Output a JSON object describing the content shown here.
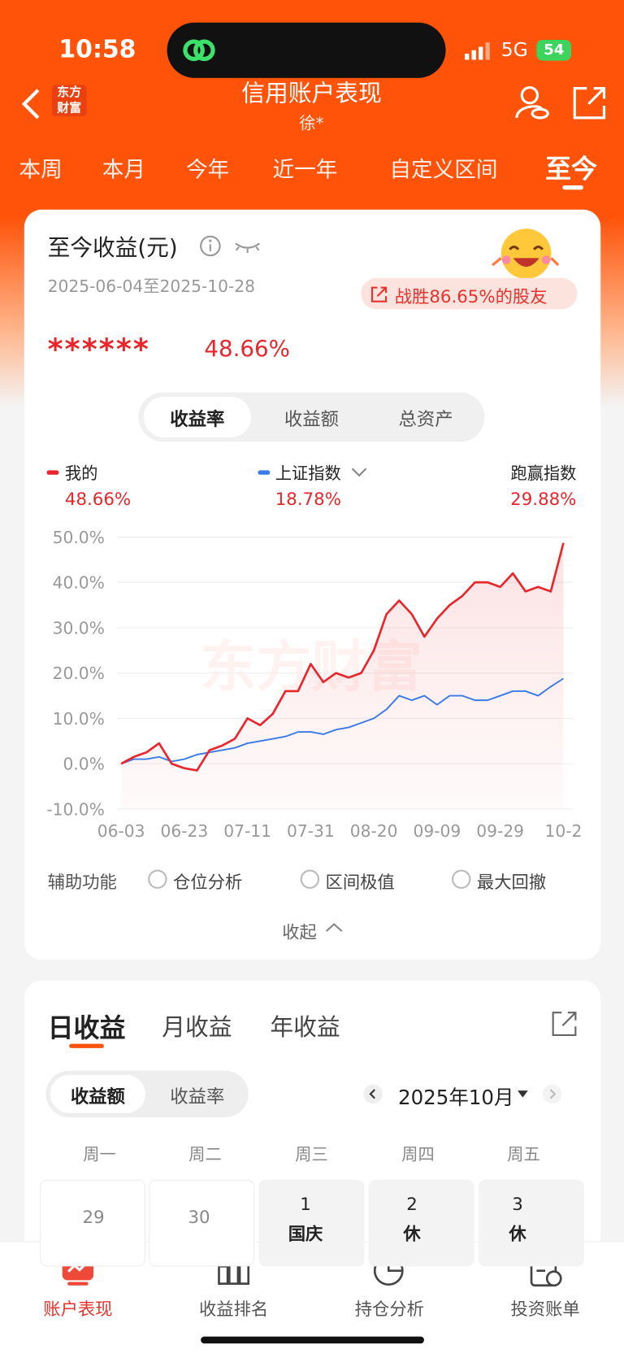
{
  "status_bar": {
    "time": "10:58",
    "network": "5G",
    "battery": "54"
  },
  "header": {
    "logo_lines": [
      "东方",
      "财富"
    ],
    "title": "信用账户表现",
    "subtitle": "徐*"
  },
  "period_tabs": [
    "本周",
    "本月",
    "今年",
    "近一年",
    "自定义区间",
    "至今"
  ],
  "summary": {
    "title": "至今收益(元)",
    "date_range": "2025-06-04至2025-10-28",
    "badge": "战胜86.65%的股友",
    "amount": "******",
    "rate": "48.66%"
  },
  "metric_tabs": [
    "收益率",
    "收益额",
    "总资产"
  ],
  "legend": [
    {
      "name": "我的",
      "value": "48.66%"
    },
    {
      "name": "上证指数",
      "value": "18.78%"
    },
    {
      "name": "跑赢指数",
      "value": "29.88%"
    }
  ],
  "chart": {
    "type": "line",
    "watermark": "东方财富",
    "categories": [
      "06-03",
      null,
      null,
      null,
      null,
      "06-23",
      null,
      null,
      null,
      null,
      "07-11",
      null,
      null,
      null,
      null,
      "07-31",
      null,
      null,
      null,
      null,
      "08-20",
      null,
      null,
      null,
      null,
      "09-09",
      null,
      null,
      null,
      null,
      "09-29",
      null,
      null,
      null,
      null,
      "10-2"
    ],
    "series": [
      {
        "color": "#e8262b",
        "values": [
          0,
          1.5,
          2.5,
          4.5,
          0,
          -1,
          -1.5,
          3,
          4,
          5.5,
          10,
          8.5,
          11,
          16,
          16,
          22,
          18,
          20,
          19,
          20,
          25,
          33,
          36,
          33,
          28,
          32,
          35,
          37,
          40,
          40,
          39,
          42,
          38,
          39,
          38,
          48.7
        ]
      },
      {
        "color": "#3b7be8",
        "values": [
          0,
          1,
          1,
          1.5,
          0.5,
          1,
          2,
          2.5,
          3,
          3.5,
          4.5,
          5,
          5.5,
          6,
          7,
          7,
          6.5,
          7.5,
          8,
          9,
          10,
          12,
          15,
          14,
          15,
          13,
          15,
          15,
          14,
          14,
          15,
          16,
          16,
          15,
          17,
          18.8
        ]
      }
    ],
    "ylim": [
      -10,
      50
    ],
    "yticks": [
      {
        "value": 50,
        "label": "50.0%"
      },
      {
        "value": 40,
        "label": "40.0%"
      },
      {
        "value": 30,
        "label": "30.0%"
      },
      {
        "value": 20,
        "label": "20.0%"
      },
      {
        "value": 10,
        "label": "10.0%"
      },
      {
        "value": 0,
        "label": "0.0%"
      },
      {
        "value": -10,
        "label": "-10.0%"
      }
    ],
    "grid": true
  },
  "tools": {
    "label": "辅助功能",
    "options": [
      "仓位分析",
      "区间极值",
      "最大回撤"
    ]
  },
  "collapse": "收起",
  "daily": {
    "tabs": [
      "日收益",
      "月收益",
      "年收益"
    ],
    "mode_tabs": [
      "收益额",
      "收益率"
    ],
    "month": "2025年10月",
    "weekdays": [
      "周一",
      "周二",
      "周三",
      "周四",
      "周五"
    ],
    "days": [
      {
        "date": "29"
      },
      {
        "date": "30"
      },
      {
        "date": "1",
        "note": "国庆"
      },
      {
        "date": "2",
        "note": "休"
      },
      {
        "date": "3",
        "note": "休"
      }
    ]
  },
  "bottom_nav": [
    "账户表现",
    "收益排名",
    "持仓分析",
    "投资账单"
  ]
}
